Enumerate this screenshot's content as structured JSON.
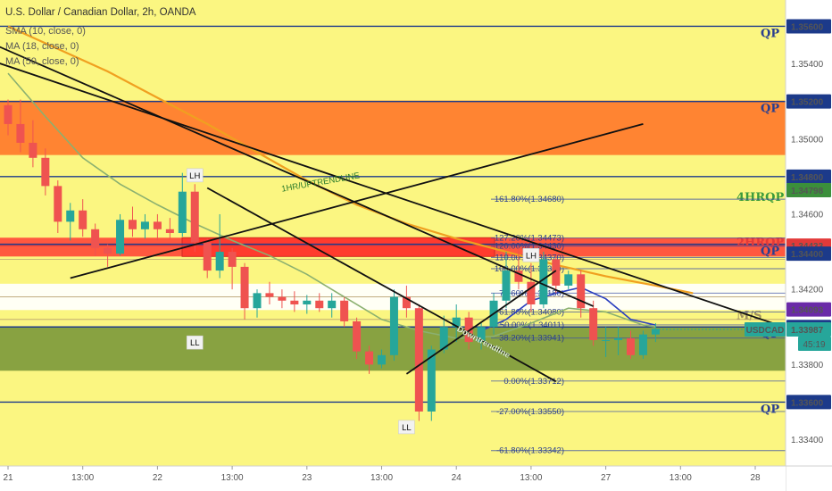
{
  "header": {
    "title": "U.S. Dollar / Canadian Dollar, 2h, OANDA",
    "indicators": [
      "SMA (10, close, 0)",
      "MA (18, close, 0)",
      "MA (50, close, 0)"
    ]
  },
  "colors": {
    "background": "#fbf681",
    "candle_up": "#26a69a",
    "candle_down": "#ef5350",
    "level_line": "#1c3a8a",
    "orange_zone": "#ff7a2b",
    "red_zone": "#ff4a3a",
    "green_zone": "#7e9a3c",
    "fib_line": "#3a4fa8",
    "ma10": "#2a3fbf",
    "ma18": "#8bb070",
    "ma50": "#f0a020",
    "price_tag_bg": "#1c3a8a",
    "current_tag_bg": "#26a69a",
    "red_tag_bg": "#e23a3a",
    "purple_tag_bg": "#6a2aa8",
    "green_tag_bg": "#3b8f3b"
  },
  "chart_data": {
    "type": "candlestick",
    "symbol": "USDCAD",
    "timeframe": "2h",
    "ylim": [
      1.3326,
      1.3574
    ],
    "price_ticks": [
      "1.35600",
      "1.35400",
      "1.35200",
      "1.35000",
      "1.34800",
      "1.34600",
      "1.34400",
      "1.34200",
      "1.34000",
      "1.33800",
      "1.33600",
      "1.33400"
    ],
    "time_ticks": [
      {
        "label": "21",
        "index": 0
      },
      {
        "label": "13:00",
        "index": 6
      },
      {
        "label": "22",
        "index": 12
      },
      {
        "label": "13:00",
        "index": 18
      },
      {
        "label": "23",
        "index": 24
      },
      {
        "label": "13:00",
        "index": 30
      },
      {
        "label": "24",
        "index": 36
      },
      {
        "label": "13:00",
        "index": 42
      },
      {
        "label": "27",
        "index": 48
      },
      {
        "label": "13:00",
        "index": 54
      },
      {
        "label": "28",
        "index": 60
      }
    ],
    "candles": [
      [
        1.3518,
        1.3521,
        1.3502,
        1.3508
      ],
      [
        1.3508,
        1.3521,
        1.3493,
        1.3498
      ],
      [
        1.3498,
        1.351,
        1.3485,
        1.349
      ],
      [
        1.349,
        1.3495,
        1.347,
        1.3475
      ],
      [
        1.3475,
        1.3478,
        1.345,
        1.3456
      ],
      [
        1.3456,
        1.3466,
        1.3446,
        1.3462
      ],
      [
        1.3462,
        1.3468,
        1.3448,
        1.3452
      ],
      [
        1.3452,
        1.3455,
        1.3438,
        1.3442
      ],
      [
        1.3442,
        1.3444,
        1.3432,
        1.3439
      ],
      [
        1.3439,
        1.346,
        1.3438,
        1.3457
      ],
      [
        1.3457,
        1.3464,
        1.3448,
        1.3452
      ],
      [
        1.3452,
        1.346,
        1.3447,
        1.3456
      ],
      [
        1.3456,
        1.346,
        1.3446,
        1.3452
      ],
      [
        1.3452,
        1.3458,
        1.3447,
        1.345
      ],
      [
        1.345,
        1.3482,
        1.3448,
        1.3472
      ],
      [
        1.3472,
        1.3476,
        1.344,
        1.3445
      ],
      [
        1.3445,
        1.3447,
        1.3426,
        1.343
      ],
      [
        1.343,
        1.346,
        1.3426,
        1.344
      ],
      [
        1.344,
        1.3442,
        1.342,
        1.3432
      ],
      [
        1.3432,
        1.3434,
        1.3404,
        1.341
      ],
      [
        1.341,
        1.342,
        1.3405,
        1.3418
      ],
      [
        1.3418,
        1.3424,
        1.3412,
        1.3416
      ],
      [
        1.3416,
        1.342,
        1.341,
        1.3414
      ],
      [
        1.3414,
        1.3419,
        1.3408,
        1.3412
      ],
      [
        1.3412,
        1.3417,
        1.3407,
        1.3414
      ],
      [
        1.3414,
        1.3418,
        1.3408,
        1.341
      ],
      [
        1.341,
        1.3418,
        1.3405,
        1.3414
      ],
      [
        1.3414,
        1.3416,
        1.34,
        1.3403
      ],
      [
        1.3403,
        1.3405,
        1.3383,
        1.3387
      ],
      [
        1.3387,
        1.339,
        1.3375,
        1.338
      ],
      [
        1.338,
        1.3388,
        1.3378,
        1.3385
      ],
      [
        1.3385,
        1.342,
        1.3382,
        1.3416
      ],
      [
        1.3416,
        1.3422,
        1.3405,
        1.341
      ],
      [
        1.341,
        1.3412,
        1.335,
        1.3355
      ],
      [
        1.3355,
        1.339,
        1.335,
        1.3388
      ],
      [
        1.3388,
        1.3406,
        1.3386,
        1.34
      ],
      [
        1.34,
        1.3412,
        1.3392,
        1.3405
      ],
      [
        1.3405,
        1.3408,
        1.3388,
        1.3392
      ],
      [
        1.3392,
        1.3402,
        1.3388,
        1.34
      ],
      [
        1.34,
        1.3418,
        1.3396,
        1.3414
      ],
      [
        1.3414,
        1.344,
        1.341,
        1.343
      ],
      [
        1.343,
        1.3442,
        1.342,
        1.3424
      ],
      [
        1.3424,
        1.3434,
        1.3408,
        1.3412
      ],
      [
        1.3412,
        1.344,
        1.341,
        1.3436
      ],
      [
        1.3436,
        1.3438,
        1.3418,
        1.3422
      ],
      [
        1.3422,
        1.343,
        1.342,
        1.3428
      ],
      [
        1.3428,
        1.343,
        1.3405,
        1.341
      ],
      [
        1.341,
        1.3414,
        1.339,
        1.3393
      ],
      [
        1.3393,
        1.34,
        1.3384,
        1.3393
      ],
      [
        1.3393,
        1.34,
        1.3385,
        1.3394
      ],
      [
        1.3394,
        1.3398,
        1.3383,
        1.3385
      ],
      [
        1.3385,
        1.3398,
        1.3383,
        1.3396
      ],
      [
        1.3396,
        1.3402,
        1.3392,
        1.3399
      ]
    ],
    "ma10": [
      [
        38,
        1.3398
      ],
      [
        40,
        1.3404
      ],
      [
        42,
        1.3414
      ],
      [
        44,
        1.3418
      ],
      [
        46,
        1.3421
      ],
      [
        48,
        1.3415
      ],
      [
        50,
        1.3404
      ],
      [
        52,
        1.3401
      ]
    ],
    "ma18": [
      [
        0,
        1.3535
      ],
      [
        3,
        1.3512
      ],
      [
        6,
        1.349
      ],
      [
        9,
        1.3476
      ],
      [
        12,
        1.3465
      ],
      [
        15,
        1.3455
      ],
      [
        18,
        1.3446
      ],
      [
        21,
        1.3438
      ],
      [
        24,
        1.3428
      ],
      [
        27,
        1.3416
      ],
      [
        30,
        1.3404
      ],
      [
        33,
        1.3398
      ],
      [
        36,
        1.3394
      ],
      [
        39,
        1.3395
      ],
      [
        42,
        1.3402
      ],
      [
        45,
        1.341
      ],
      [
        48,
        1.3408
      ],
      [
        51,
        1.3401
      ],
      [
        52,
        1.34
      ]
    ],
    "ma50": [
      [
        0,
        1.356
      ],
      [
        4,
        1.3548
      ],
      [
        8,
        1.3536
      ],
      [
        12,
        1.3522
      ],
      [
        16,
        1.3508
      ],
      [
        20,
        1.3493
      ],
      [
        24,
        1.3478
      ],
      [
        28,
        1.3465
      ],
      [
        32,
        1.3455
      ],
      [
        36,
        1.3447
      ],
      [
        40,
        1.344
      ],
      [
        44,
        1.3433
      ],
      [
        48,
        1.3427
      ],
      [
        52,
        1.3422
      ],
      [
        55,
        1.3418
      ]
    ],
    "levels": [
      {
        "price": 1.356,
        "label": "QP",
        "label_color": "#2a3f8f"
      },
      {
        "price": 1.352,
        "label": "QP",
        "label_color": "#2a3f8f"
      },
      {
        "price": 1.348,
        "label": "",
        "label_color": "#2a3f8f"
      },
      {
        "price": 1.3444,
        "label": "QP",
        "label_color": "#2a3f8f"
      },
      {
        "price": 1.34,
        "label": "QP",
        "label_color": "#2a3f8f"
      },
      {
        "price": 1.336,
        "label": "QP",
        "label_color": "#2a3f8f"
      }
    ],
    "level_labels_extra": [
      {
        "price": 1.3469,
        "label": "4HRQP",
        "color": "#3b9a3b"
      },
      {
        "price": 1.3445,
        "label": "2HRQP",
        "color": "#e23a3a"
      },
      {
        "price": 1.3406,
        "label": "M/S",
        "color": "#a09060"
      }
    ],
    "zones": [
      {
        "from": 1.35205,
        "to": 1.34915,
        "color": "#ff7a2b"
      },
      {
        "from": 1.34475,
        "to": 1.34375,
        "color": "#ff4a3a"
      },
      {
        "from": 1.34,
        "to": 1.33767,
        "color": "#7e9a3c"
      },
      {
        "from": 1.3423,
        "to": 1.3409,
        "color": "#ffffff"
      }
    ],
    "fib": [
      {
        "label": "161.80%(1.34680)",
        "price": 1.3468
      },
      {
        "label": "127.20%(1.34473)",
        "price": 1.34473
      },
      {
        "label": "120.00%(1.34430)",
        "price": 1.3443
      },
      {
        "label": "110.00%(1.34370)",
        "price": 1.3437
      },
      {
        "label": "100.00%(1.34310)",
        "price": 1.3431
      },
      {
        "label": "78.60%(1.34180)",
        "price": 1.3418
      },
      {
        "label": "61.80%(1.34080)",
        "price": 1.3408
      },
      {
        "label": "50.00%(1.34011)",
        "price": 1.34011
      },
      {
        "label": "38.20%(1.33941)",
        "price": 1.33941
      },
      {
        "label": "0.00%(1.33712)",
        "price": 1.33712
      },
      {
        "label": "-27.00%(1.33550)",
        "price": 1.3355
      },
      {
        "label": "-61.80%(1.33342)",
        "price": 1.33342
      }
    ],
    "trendlines": [
      {
        "name": "downtrendline-upper",
        "from": [
          -1,
          1.355
        ],
        "to": [
          47,
          1.3411
        ]
      },
      {
        "name": "downtrendline-lower",
        "from": [
          -1,
          1.3541
        ],
        "to": [
          65,
          1.3394
        ]
      },
      {
        "name": "downtrendline-short",
        "from": [
          16,
          1.3474
        ],
        "to": [
          44,
          1.3371
        ]
      },
      {
        "name": "uptrendline",
        "from": [
          5,
          1.3426
        ],
        "to": [
          51,
          1.3508
        ]
      },
      {
        "name": "uptrendline-small",
        "from": [
          32,
          1.3375
        ],
        "to": [
          44,
          1.343
        ]
      }
    ],
    "annotations": [
      {
        "text": "LH",
        "index": 15,
        "price": 1.348
      },
      {
        "text": "LL",
        "index": 15,
        "price": 1.3391
      },
      {
        "text": "LL",
        "index": 32,
        "price": 1.3346
      },
      {
        "text": "LH",
        "index": 42,
        "price": 1.34375
      }
    ],
    "trendline_labels": [
      {
        "text": "1HR/UPTRENDLINE",
        "index": 22,
        "price": 1.3472,
        "angle": -10
      },
      {
        "text": "Downtrendline",
        "index": 36,
        "price": 1.3398,
        "angle": 28
      }
    ],
    "price_tags": [
      {
        "text": "1.35600",
        "price": 1.356,
        "bg": "#1c3a8a"
      },
      {
        "text": "1.35200",
        "price": 1.352,
        "bg": "#1c3a8a"
      },
      {
        "text": "1.34800",
        "price": 1.348,
        "bg": "#1c3a8a"
      },
      {
        "text": "1.34798",
        "price": 1.34728,
        "bg": "#3b8f3b"
      },
      {
        "text": "1.34433",
        "price": 1.34433,
        "bg": "#e23a3a"
      },
      {
        "text": "1.34400",
        "price": 1.3439,
        "bg": "#1c3a8a"
      },
      {
        "text": "1.34093",
        "price": 1.34093,
        "bg": "#6a2aa8"
      },
      {
        "text": "1.34000",
        "price": 1.34,
        "bg": "#1c3a8a"
      },
      {
        "text": "1.33987",
        "price": 1.33987,
        "bg": "#26a69a"
      },
      {
        "text": "1.33600",
        "price": 1.336,
        "bg": "#1c3a8a"
      }
    ],
    "current": {
      "symbol": "USDCAD",
      "countdown": "45:19",
      "price": 1.33987
    }
  }
}
